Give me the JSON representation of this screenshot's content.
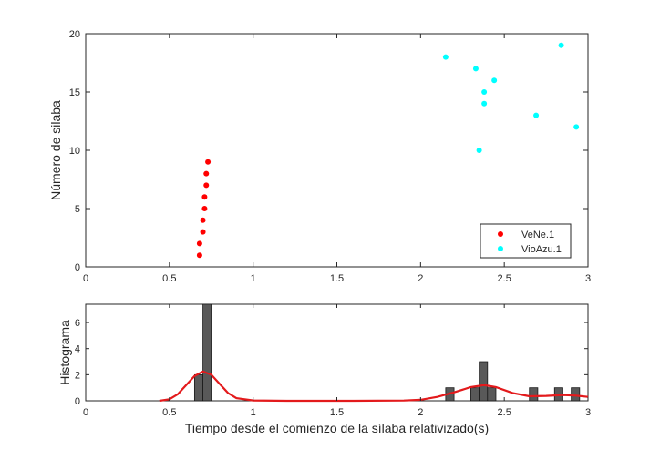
{
  "chart_data": [
    {
      "type": "scatter",
      "xlim": [
        0,
        3
      ],
      "ylim": [
        0,
        20
      ],
      "x_ticks": [
        "0",
        "0.5",
        "1",
        "1.5",
        "2",
        "2.5",
        "3"
      ],
      "y_ticks": [
        "0",
        "5",
        "10",
        "15",
        "20"
      ],
      "xlabel": "",
      "ylabel": "Número de silaba",
      "legend_position": "bottom-right",
      "series": [
        {
          "name": "VeNe.1",
          "color": "#ff0000",
          "points": [
            {
              "x": 0.68,
              "y": 1
            },
            {
              "x": 0.68,
              "y": 2
            },
            {
              "x": 0.7,
              "y": 3
            },
            {
              "x": 0.7,
              "y": 4
            },
            {
              "x": 0.71,
              "y": 5
            },
            {
              "x": 0.71,
              "y": 6
            },
            {
              "x": 0.72,
              "y": 7
            },
            {
              "x": 0.72,
              "y": 8
            },
            {
              "x": 0.73,
              "y": 9
            }
          ]
        },
        {
          "name": "VioAzu.1",
          "color": "#00ffff",
          "points": [
            {
              "x": 2.35,
              "y": 10
            },
            {
              "x": 2.69,
              "y": 13
            },
            {
              "x": 2.38,
              "y": 14
            },
            {
              "x": 2.38,
              "y": 15
            },
            {
              "x": 2.44,
              "y": 16
            },
            {
              "x": 2.33,
              "y": 17
            },
            {
              "x": 2.15,
              "y": 18
            },
            {
              "x": 2.84,
              "y": 19
            },
            {
              "x": 2.93,
              "y": 12
            }
          ]
        }
      ]
    },
    {
      "type": "bar",
      "xlim": [
        0,
        3
      ],
      "ylim": [
        0,
        7.4
      ],
      "x_ticks": [
        "0",
        "0.5",
        "1",
        "1.5",
        "2",
        "2.5",
        "3"
      ],
      "y_ticks": [
        "0",
        "2",
        "4",
        "6"
      ],
      "xlabel": "Tiempo desde el comienzo de la sílaba relativizado(s)",
      "ylabel": "Histograma",
      "bar_color": "#595959",
      "curve_color": "#e31a1c",
      "bins": [
        {
          "x": 0.675,
          "value": 2
        },
        {
          "x": 0.725,
          "value": 8
        },
        {
          "x": 2.175,
          "value": 1
        },
        {
          "x": 2.325,
          "value": 1
        },
        {
          "x": 2.375,
          "value": 3
        },
        {
          "x": 2.425,
          "value": 1
        },
        {
          "x": 2.675,
          "value": 1
        },
        {
          "x": 2.825,
          "value": 1
        },
        {
          "x": 2.925,
          "value": 1
        }
      ],
      "density_curve": [
        {
          "x": 0.44,
          "y": 0.0
        },
        {
          "x": 0.5,
          "y": 0.12
        },
        {
          "x": 0.55,
          "y": 0.5
        },
        {
          "x": 0.6,
          "y": 1.2
        },
        {
          "x": 0.65,
          "y": 1.9
        },
        {
          "x": 0.7,
          "y": 2.25
        },
        {
          "x": 0.75,
          "y": 2.0
        },
        {
          "x": 0.8,
          "y": 1.3
        },
        {
          "x": 0.85,
          "y": 0.6
        },
        {
          "x": 0.9,
          "y": 0.2
        },
        {
          "x": 1.0,
          "y": 0.03
        },
        {
          "x": 1.2,
          "y": 0.0
        },
        {
          "x": 1.6,
          "y": 0.0
        },
        {
          "x": 1.9,
          "y": 0.02
        },
        {
          "x": 2.0,
          "y": 0.08
        },
        {
          "x": 2.1,
          "y": 0.3
        },
        {
          "x": 2.2,
          "y": 0.65
        },
        {
          "x": 2.3,
          "y": 1.05
        },
        {
          "x": 2.38,
          "y": 1.2
        },
        {
          "x": 2.45,
          "y": 1.05
        },
        {
          "x": 2.55,
          "y": 0.6
        },
        {
          "x": 2.65,
          "y": 0.35
        },
        {
          "x": 2.75,
          "y": 0.38
        },
        {
          "x": 2.85,
          "y": 0.45
        },
        {
          "x": 2.93,
          "y": 0.4
        },
        {
          "x": 3.0,
          "y": 0.3
        }
      ]
    }
  ]
}
